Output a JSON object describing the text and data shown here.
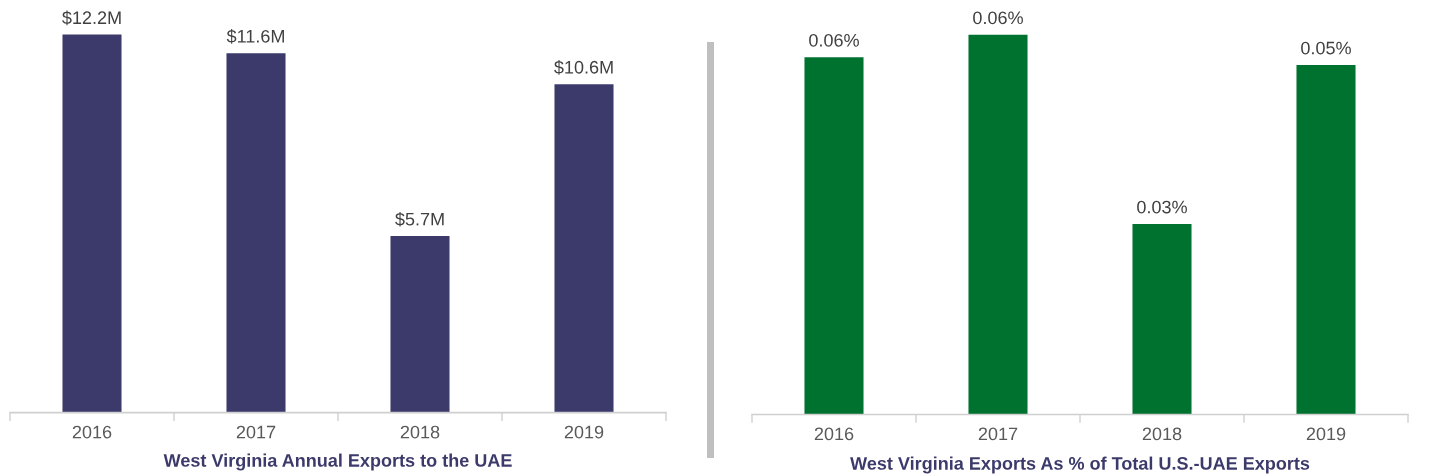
{
  "chart_data": [
    {
      "type": "bar",
      "title": "West Virginia Annual Exports to the UAE",
      "categories": [
        "2016",
        "2017",
        "2018",
        "2019"
      ],
      "values": [
        12.2,
        11.6,
        5.7,
        10.6
      ],
      "value_labels": [
        "$12.2M",
        "$11.6M",
        "$5.7M",
        "$10.6M"
      ],
      "color": "#3b3a6b"
    },
    {
      "type": "bar",
      "title": "West Virginia Exports As % of Total U.S.-UAE Exports",
      "categories": [
        "2016",
        "2017",
        "2018",
        "2019"
      ],
      "values": [
        0.0555,
        0.059,
        0.0296,
        0.0543
      ],
      "value_labels": [
        "0.06%",
        "0.06%",
        "0.03%",
        "0.05%"
      ],
      "color": "#00722f"
    }
  ]
}
